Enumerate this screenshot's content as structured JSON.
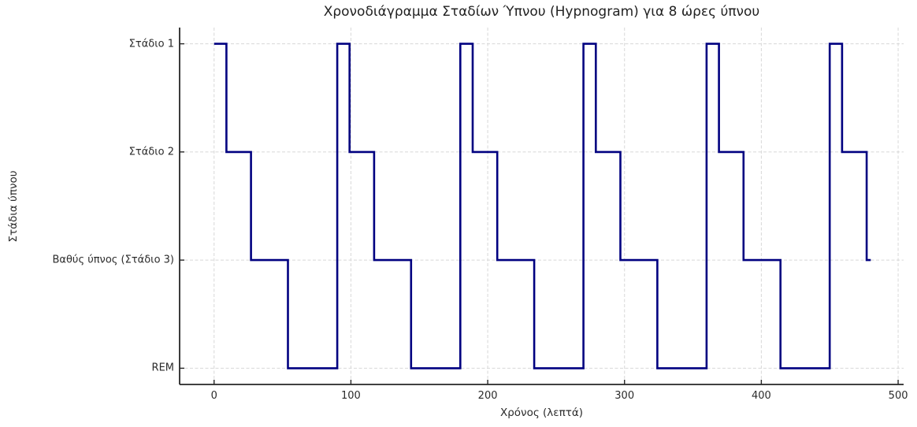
{
  "chart_data": {
    "type": "line",
    "subtype": "step-post-hypnogram",
    "title": "Χρονοδιάγραμμα Σταδίων Ύπνου (Hypnogram) για 8 ώρες ύπνου",
    "xlabel": "Χρόνος (λεπτά)",
    "ylabel": "Στάδια ύπνου",
    "x_ticks": [
      0,
      100,
      200,
      300,
      400,
      500
    ],
    "y_tick_values": [
      1,
      2,
      3,
      4
    ],
    "y_ticklabels": [
      "Στάδιο 1",
      "Στάδιο 2",
      "Βαθύς ύπνος (Στάδιο 3)",
      "REM"
    ],
    "series": [
      {
        "name": "sleep-stages",
        "step": "post",
        "t": [
          0,
          9,
          27,
          54,
          90,
          99,
          117,
          144,
          180,
          189,
          207,
          234,
          270,
          279,
          297,
          324,
          360,
          369,
          387,
          414,
          450,
          459,
          477
        ],
        "stage": [
          1,
          2,
          3,
          4,
          1,
          2,
          3,
          4,
          1,
          2,
          3,
          4,
          1,
          2,
          3,
          4,
          1,
          2,
          3,
          4,
          1,
          2,
          3
        ],
        "end_t": 480
      }
    ],
    "cycle_minutes": 90,
    "total_minutes": 480,
    "xlim": [
      -25.2,
      504
    ],
    "ylim": [
      0.85,
      4.15
    ],
    "y_axis_inverted": true,
    "grid": true,
    "grid_style": "dashed",
    "tick_direction": "in",
    "line_color": "#000080",
    "grid_color": "#d8d8d8",
    "axis_color": "#262626",
    "text_color": "#2b2b2b",
    "background": "#ffffff"
  }
}
